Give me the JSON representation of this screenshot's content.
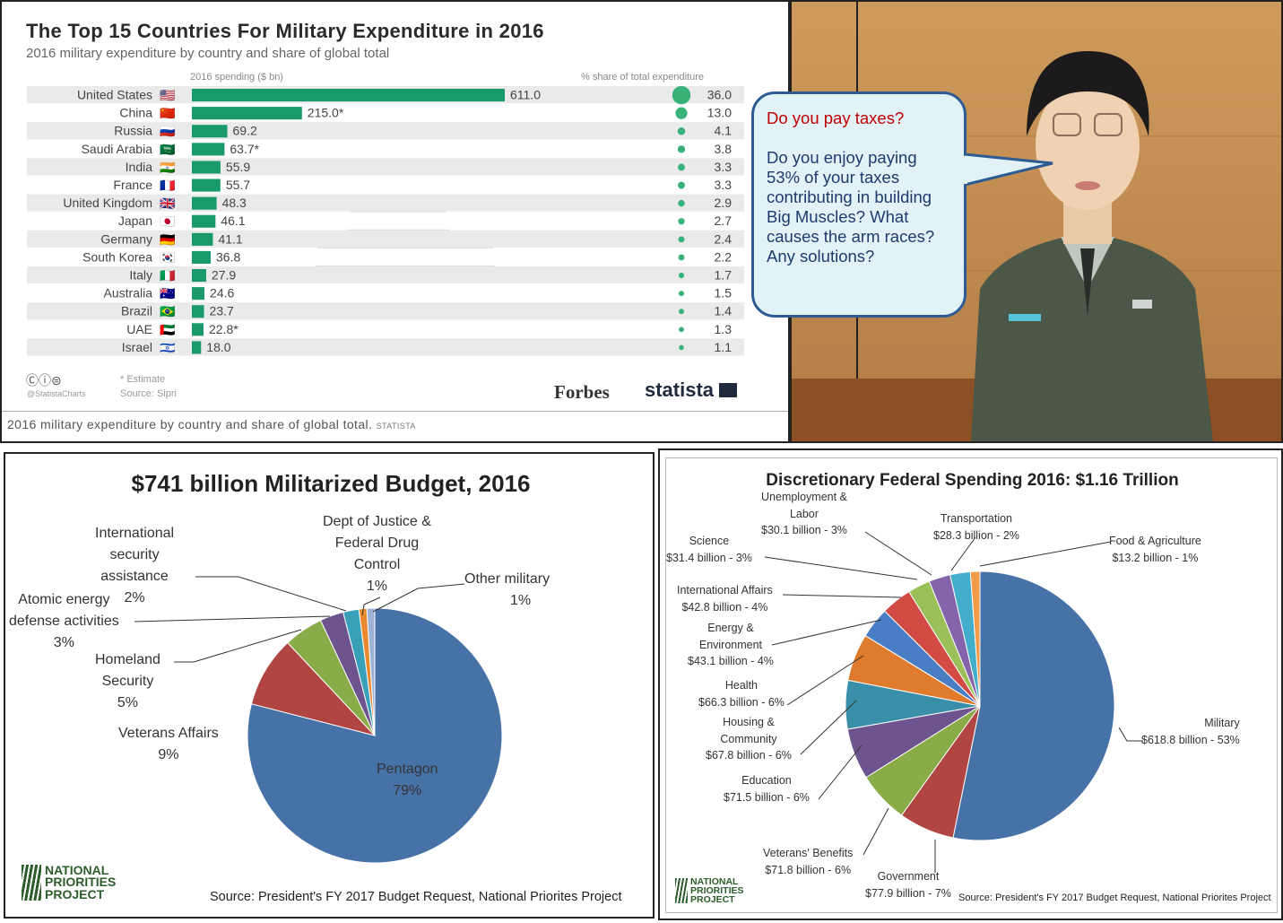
{
  "bar_panel": {
    "title": "The Top 15 Countries For Military Expenditure in 2016",
    "subtitle": "2016 military expenditure by country and share of global total",
    "col_spending": "2016 spending ($ bn)",
    "col_share": "% share of total expenditure",
    "estimate_note": "* Estimate",
    "source_note": "Source: Sipri",
    "handle": "@StatistaCharts",
    "cc_icons": "Ⓒⓘ⊜",
    "forbes": "Forbes",
    "statista": "statista",
    "caption": "2016 military expenditure by country and share of global total.",
    "caption_tag": "STATISTA",
    "colors": {
      "bar": "#1a9a6b",
      "row_odd": "#eaeaea",
      "row_even": "#ffffff"
    }
  },
  "chart_data": [
    {
      "type": "bar",
      "title": "The Top 15 Countries For Military Expenditure in 2016",
      "xlabel": "2016 spending ($ bn)",
      "categories": [
        "United States",
        "China",
        "Russia",
        "Saudi Arabia",
        "India",
        "France",
        "United Kingdom",
        "Japan",
        "Germany",
        "South Korea",
        "Italy",
        "Australia",
        "Brazil",
        "UAE",
        "Israel"
      ],
      "flags": [
        "🇺🇸",
        "🇨🇳",
        "🇷🇺",
        "🇸🇦",
        "🇮🇳",
        "🇫🇷",
        "🇬🇧",
        "🇯🇵",
        "🇩🇪",
        "🇰🇷",
        "🇮🇹",
        "🇦🇺",
        "🇧🇷",
        "🇦🇪",
        "🇮🇱"
      ],
      "values": [
        611.0,
        215.0,
        69.2,
        63.7,
        55.9,
        55.7,
        48.3,
        46.1,
        41.1,
        36.8,
        27.9,
        24.6,
        23.7,
        22.8,
        18.0
      ],
      "value_labels": [
        "611.0",
        "215.0*",
        "69.2",
        "63.7*",
        "55.9",
        "55.7",
        "48.3",
        "46.1",
        "41.1",
        "36.8",
        "27.9",
        "24.6",
        "23.7",
        "22.8*",
        "18.0"
      ],
      "share": [
        36.0,
        13.0,
        4.1,
        3.8,
        3.3,
        3.3,
        2.9,
        2.7,
        2.4,
        2.2,
        1.7,
        1.5,
        1.4,
        1.3,
        1.1
      ],
      "share_labels": [
        "36.0",
        "13.0",
        "4.1",
        "3.8",
        "3.3",
        "3.3",
        "2.9",
        "2.7",
        "2.4",
        "2.2",
        "1.7",
        "1.5",
        "1.4",
        "1.3",
        "1.1"
      ],
      "xlim": [
        0,
        611
      ]
    },
    {
      "type": "pie",
      "title": "$741 billion Militarized Budget, 2016",
      "slices": [
        {
          "name": "Pentagon",
          "value": 79,
          "color": "#4672a8",
          "label": "Pentagon",
          "pct": "79%"
        },
        {
          "name": "Veterans Affairs",
          "value": 9,
          "color": "#b04542",
          "label": "Veterans Affairs",
          "pct": "9%"
        },
        {
          "name": "Homeland Security",
          "value": 5,
          "color": "#8aac48",
          "label": "Homeland Security",
          "pct": "5%"
        },
        {
          "name": "Atomic energy defense activities",
          "value": 3,
          "color": "#6e548f",
          "label": "Atomic energy defense activities",
          "pct": "3%"
        },
        {
          "name": "International security assistance",
          "value": 2,
          "color": "#3aa0b9",
          "label": "International security assistance",
          "pct": "2%"
        },
        {
          "name": "Dept of Justice & Federal Drug Control",
          "value": 1,
          "color": "#e8892f",
          "label": "Dept of Justice & Federal Drug Control",
          "pct": "1%"
        },
        {
          "name": "Other military",
          "value": 1,
          "color": "#9db3d6",
          "label": "Other military",
          "pct": "1%"
        }
      ]
    },
    {
      "type": "pie",
      "title": "Discretionary Federal Spending 2016: $1.16 Trillion",
      "slices": [
        {
          "name": "Military",
          "value": 618.8,
          "color": "#4672a8",
          "amount": "$618.8 billion - 53%"
        },
        {
          "name": "Government",
          "value": 77.9,
          "color": "#b04542",
          "amount": "$77.9 billion - 7%"
        },
        {
          "name": "Veterans' Benefits",
          "value": 71.8,
          "color": "#8aac48",
          "amount": "$71.8 billion - 6%"
        },
        {
          "name": "Education",
          "value": 71.5,
          "color": "#6e548f",
          "amount": "$71.5 billion - 6%"
        },
        {
          "name": "Housing & Community",
          "value": 67.8,
          "color": "#3a8fa8",
          "amount": "$67.8 billion - 6%"
        },
        {
          "name": "Health",
          "value": 66.3,
          "color": "#e07b2d",
          "amount": "$66.3 billion - 6%"
        },
        {
          "name": "Energy & Environment",
          "value": 43.1,
          "color": "#4a7ec4",
          "amount": "$43.1 billion - 4%"
        },
        {
          "name": "International Affairs",
          "value": 42.8,
          "color": "#d24b45",
          "amount": "$42.8 billion - 4%"
        },
        {
          "name": "Science",
          "value": 31.4,
          "color": "#9bc05a",
          "amount": "$31.4 billion - 3%"
        },
        {
          "name": "Unemployment & Labor",
          "value": 30.1,
          "color": "#8564ab",
          "amount": "$30.1 billion - 3%"
        },
        {
          "name": "Transportation",
          "value": 28.3,
          "color": "#42aecb",
          "amount": "$28.3 billion - 2%"
        },
        {
          "name": "Food & Agriculture",
          "value": 13.2,
          "color": "#f29a45",
          "amount": "$13.2 billion - 1%"
        }
      ]
    }
  ],
  "pie1": {
    "labels": {
      "pentagon": "Pentagon",
      "pentagon_pct": "79%",
      "veterans": "Veterans Affairs",
      "veterans_pct": "9%",
      "homeland_1": "Homeland",
      "homeland_2": "Security",
      "homeland_pct": "5%",
      "atomic_1": "Atomic energy",
      "atomic_2": "defense activities",
      "atomic_pct": "3%",
      "intl_1": "International",
      "intl_2": "security",
      "intl_3": "assistance",
      "intl_pct": "2%",
      "doj_1": "Dept of Justice &",
      "doj_2": "Federal Drug",
      "doj_3": "Control",
      "doj_pct": "1%",
      "other": "Other military",
      "other_pct": "1%"
    },
    "logo": [
      "NATIONAL",
      "PRIORITIES",
      "PROJECT"
    ],
    "source": "Source: President's FY 2017 Budget  Request, National Priorites Project"
  },
  "pie2": {
    "labels": {
      "unemp_1": "Unemployment  &",
      "unemp_2": "Labor",
      "unemp_3": "$30.1 billion - 3%",
      "transport_1": "Transportation",
      "transport_2": "$28.3 billion - 2%",
      "food_1": "Food & Agriculture",
      "food_2": "$13.2 billion - 1%",
      "science_1": "Science",
      "science_2": "$31.4 billion - 3%",
      "intl_1": "International Affairs",
      "intl_2": "$42.8 billion - 4%",
      "energy_1": "Energy &",
      "energy_2": "Environment",
      "energy_3": "$43.1 billion - 4%",
      "health_1": "Health",
      "health_2": "$66.3 billion - 6%",
      "housing_1": "Housing &",
      "housing_2": "Community",
      "housing_3": "$67.8 billion - 6%",
      "edu_1": "Education",
      "edu_2": "$71.5 billion - 6%",
      "vet_1": "Veterans' Benefits",
      "vet_2": "$71.8 billion - 6%",
      "gov_1": "Government",
      "gov_2": "$77.9 billion - 7%",
      "mil_1": "Military",
      "mil_2": "$618.8 billion - 53%"
    },
    "logo": [
      "NATIONAL",
      "PRIORITIES",
      "PROJECT"
    ],
    "source": "Source: President's FY 2017 Budget Request, National Priorites Project"
  },
  "bubble": {
    "q1": "Do you pay taxes?",
    "q2": "Do you enjoy paying 53% of your taxes contributing in building Big Muscles? What causes the arm races? Any solutions?"
  }
}
